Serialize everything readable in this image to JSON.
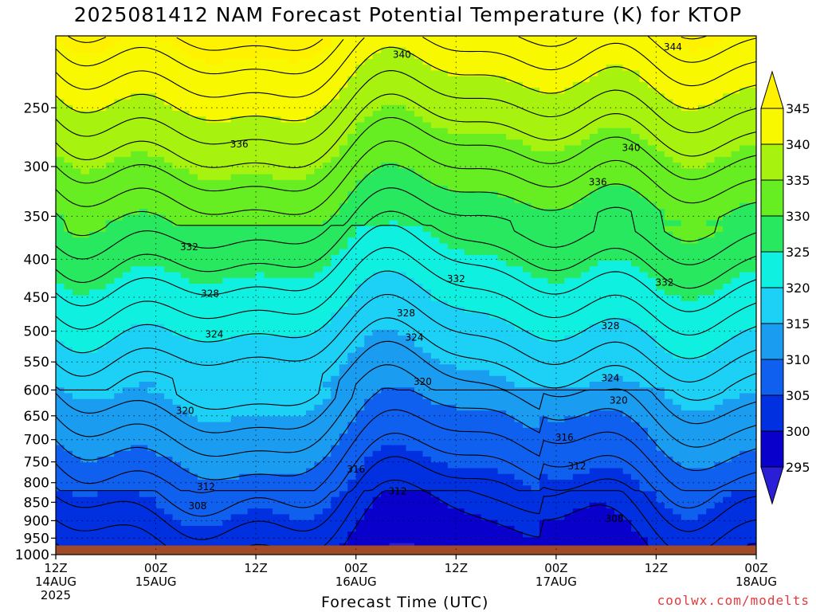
{
  "chart_data": {
    "type": "heatmap",
    "title": "2025081412 NAM Forecast Potential Temperature (K) for KTOP",
    "xlabel": "Forecast Time (UTC)",
    "ylabel": "",
    "credit": "coolwx.com/modelts",
    "y_axis": {
      "scale": "log-pressure",
      "reversed": true,
      "ticks": [
        250,
        300,
        350,
        400,
        450,
        500,
        550,
        600,
        650,
        700,
        750,
        800,
        850,
        900,
        950,
        1000
      ],
      "range": [
        200,
        1000
      ]
    },
    "x_axis": {
      "range_hours": [
        0,
        84
      ],
      "ticks": [
        {
          "hour": 0,
          "line1": "12Z",
          "line2": "14AUG",
          "line3": "2025"
        },
        {
          "hour": 12,
          "line1": "00Z",
          "line2": "15AUG",
          "line3": ""
        },
        {
          "hour": 24,
          "line1": "12Z",
          "line2": "",
          "line3": ""
        },
        {
          "hour": 36,
          "line1": "00Z",
          "line2": "16AUG",
          "line3": ""
        },
        {
          "hour": 48,
          "line1": "12Z",
          "line2": "",
          "line3": ""
        },
        {
          "hour": 60,
          "line1": "00Z",
          "line2": "17AUG",
          "line3": ""
        },
        {
          "hour": 72,
          "line1": "12Z",
          "line2": "",
          "line3": ""
        },
        {
          "hour": 84,
          "line1": "00Z",
          "line2": "18AUG",
          "line3": ""
        }
      ]
    },
    "colorbar": {
      "levels": [
        "295",
        "300",
        "305",
        "310",
        "315",
        "320",
        "325",
        "330",
        "335",
        "340",
        "345"
      ],
      "colors": [
        "#2a1fd6",
        "#0a00cc",
        "#0030e0",
        "#1060f0",
        "#1a9cf0",
        "#1dd0f5",
        "#10f0e0",
        "#28e860",
        "#66ee22",
        "#a8f210",
        "#f8f800",
        "#fff200"
      ],
      "extend": "both"
    },
    "grid": true,
    "terrain_color": "#a04a28",
    "contour_interval": 2,
    "contour_labels": [
      {
        "value": "340",
        "hour": 41.5,
        "p": 212
      },
      {
        "value": "344",
        "hour": 74,
        "p": 207
      },
      {
        "value": "336",
        "hour": 22,
        "p": 280
      },
      {
        "value": "340",
        "hour": 69,
        "p": 283
      },
      {
        "value": "336",
        "hour": 65,
        "p": 315
      },
      {
        "value": "332",
        "hour": 16,
        "p": 385
      },
      {
        "value": "332",
        "hour": 48,
        "p": 425
      },
      {
        "value": "332",
        "hour": 73,
        "p": 430
      },
      {
        "value": "328",
        "hour": 18.5,
        "p": 445
      },
      {
        "value": "328",
        "hour": 42,
        "p": 473
      },
      {
        "value": "328",
        "hour": 66.5,
        "p": 492
      },
      {
        "value": "324",
        "hour": 19,
        "p": 505
      },
      {
        "value": "324",
        "hour": 43,
        "p": 510
      },
      {
        "value": "324",
        "hour": 66.5,
        "p": 578
      },
      {
        "value": "320",
        "hour": 44,
        "p": 585
      },
      {
        "value": "320",
        "hour": 15.5,
        "p": 640
      },
      {
        "value": "320",
        "hour": 67.5,
        "p": 620
      },
      {
        "value": "316",
        "hour": 61,
        "p": 695
      },
      {
        "value": "316",
        "hour": 36,
        "p": 768
      },
      {
        "value": "312",
        "hour": 62.5,
        "p": 760
      },
      {
        "value": "312",
        "hour": 18,
        "p": 810
      },
      {
        "value": "312",
        "hour": 41,
        "p": 822
      },
      {
        "value": "308",
        "hour": 17,
        "p": 860
      },
      {
        "value": "308",
        "hour": 67,
        "p": 895
      }
    ]
  }
}
